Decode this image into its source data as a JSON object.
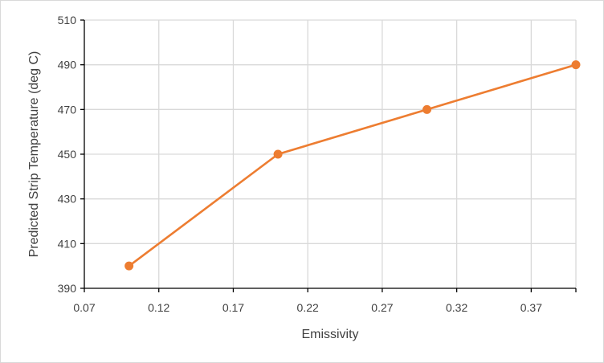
{
  "chart_data": {
    "type": "line",
    "title": "",
    "xlabel": "Emissivity",
    "ylabel": "Predicted Strip Temperature (deg C)",
    "xlim": [
      0.07,
      0.4
    ],
    "ylim": [
      390,
      510
    ],
    "x_ticks": [
      0.07,
      0.12,
      0.17,
      0.22,
      0.27,
      0.32,
      0.37
    ],
    "x_tick_labels": [
      "0.07",
      "0.12",
      "0.17",
      "0.22",
      "0.27",
      "0.32",
      "0.37"
    ],
    "y_ticks": [
      390,
      410,
      430,
      450,
      470,
      490,
      510
    ],
    "y_tick_labels": [
      "390",
      "410",
      "430",
      "450",
      "470",
      "490",
      "510"
    ],
    "grid": true,
    "legend": "none",
    "series": [
      {
        "color": "#ED7D31",
        "x": [
          0.1,
          0.2,
          0.3,
          0.4
        ],
        "y": [
          400,
          450,
          470,
          490
        ]
      }
    ]
  }
}
